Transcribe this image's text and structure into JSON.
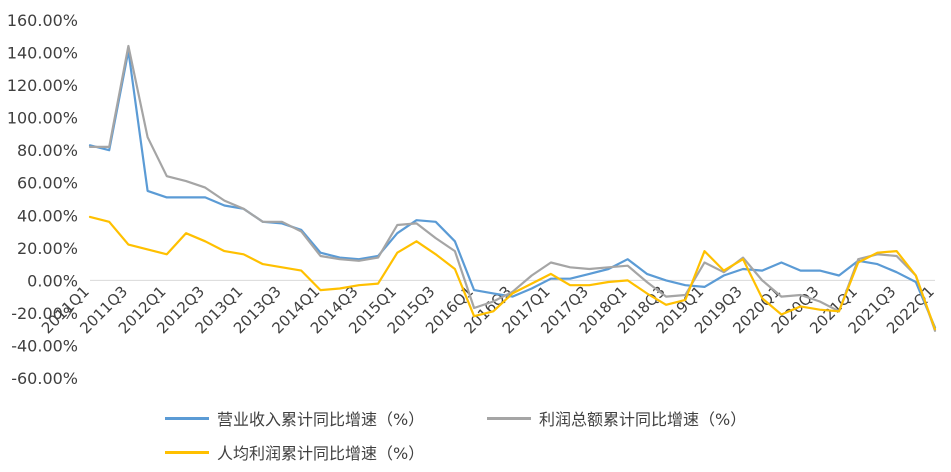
{
  "chart_data": {
    "type": "line",
    "title": "",
    "xlabel": "",
    "ylabel": "",
    "ylim": [
      -60,
      160
    ],
    "y_ticks": [
      "160.00%",
      "140.00%",
      "120.00%",
      "100.00%",
      "80.00%",
      "60.00%",
      "40.00%",
      "20.00%",
      "0.00%",
      "-20.00%",
      "-40.00%",
      "-60.00%"
    ],
    "y_tick_values": [
      160,
      140,
      120,
      100,
      80,
      60,
      40,
      20,
      0,
      -20,
      -40,
      -60
    ],
    "grid": false,
    "legend_position": "bottom",
    "x": [
      "2011Q1",
      "2011Q2",
      "2011Q3",
      "2011Q4",
      "2012Q1",
      "2012Q2",
      "2012Q3",
      "2012Q4",
      "2013Q1",
      "2013Q2",
      "2013Q3",
      "2013Q4",
      "2014Q1",
      "2014Q2",
      "2014Q3",
      "2014Q4",
      "2015Q1",
      "2015Q2",
      "2015Q3",
      "2015Q4",
      "2016Q1",
      "2016Q2",
      "2016Q3",
      "2016Q4",
      "2017Q1",
      "2017Q2",
      "2017Q3",
      "2017Q4",
      "2018Q1",
      "2018Q2",
      "2018Q3",
      "2018Q4",
      "2019Q1",
      "2019Q2",
      "2019Q3",
      "2019Q4",
      "2020Q1",
      "2020Q2",
      "2020Q3",
      "2020Q4",
      "2021Q1",
      "2021Q2",
      "2021Q3",
      "2021Q4",
      "2022Q1"
    ],
    "x_tick_labels": [
      "2011Q1",
      "2011Q3",
      "2012Q1",
      "2012Q3",
      "2013Q1",
      "2013Q3",
      "2014Q1",
      "2014Q3",
      "2015Q1",
      "2015Q3",
      "2016Q1",
      "2016Q3",
      "2017Q1",
      "2017Q3",
      "2018Q1",
      "2018Q3",
      "2019Q1",
      "2019Q3",
      "2020Q1",
      "2020Q3",
      "2021Q1",
      "2021Q3",
      "2022Q1"
    ],
    "series": [
      {
        "name": "营业收入累计同比增速（%）",
        "color": "#5B9BD5",
        "values": [
          83,
          80,
          141,
          55,
          51,
          51,
          51,
          46,
          44,
          36,
          35,
          31,
          17,
          14,
          13,
          15,
          29,
          37,
          36,
          24,
          -6,
          -8,
          -10,
          -5,
          1,
          1,
          4,
          7,
          13,
          4,
          0,
          -3,
          -4,
          3,
          7,
          6,
          11,
          6,
          6,
          3,
          12,
          10,
          5,
          -1,
          -29
        ]
      },
      {
        "name": "利润总额累计同比增速（%）",
        "color": "#A5A5A5",
        "values": [
          82,
          82,
          144,
          88,
          64,
          61,
          57,
          49,
          44,
          36,
          36,
          30,
          15,
          13,
          12,
          14,
          34,
          35,
          26,
          18,
          -17,
          -13,
          -7,
          3,
          11,
          8,
          7,
          8,
          9,
          -1,
          -10,
          -9,
          11,
          5,
          14,
          0,
          -10,
          -9,
          -13,
          -19,
          13,
          16,
          15,
          3,
          -31
        ]
      },
      {
        "name": "人均利润累计同比增速（%）",
        "color": "#FFC000",
        "values": [
          39,
          36,
          22,
          19,
          16,
          29,
          24,
          18,
          16,
          10,
          8,
          6,
          -6,
          -5,
          -3,
          -2,
          17,
          24,
          16,
          7,
          -22,
          -19,
          -8,
          -2,
          4,
          -3,
          -3,
          -1,
          0,
          -8,
          -15,
          -12,
          18,
          6,
          13,
          -11,
          -21,
          -16,
          -18,
          -19,
          11,
          17,
          18,
          3,
          -30
        ]
      }
    ]
  }
}
